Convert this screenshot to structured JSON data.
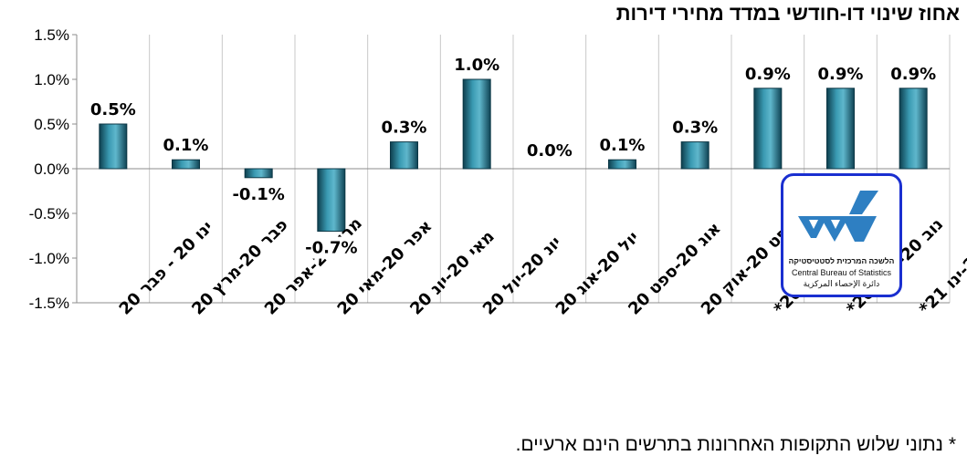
{
  "title": "אחוז שינוי דו-חודשי במדד מחירי דירות",
  "footnote": "* נתוני שלוש התקופות האחרונות בתרשים הינם ארעיים.",
  "logo": {
    "hebrew": "הלשכה המרכזית לסטטיסטיקה",
    "english": "Central Bureau of Statistics",
    "arabic": "دائرة الإحصاء المركزية",
    "border_color": "#1a2fd0",
    "icon_color": "#2e7fc2"
  },
  "chart_data": {
    "type": "bar",
    "categories": [
      "ינו 20 - פבר 20",
      "פבר 20-מרץ 20",
      "מרץ 20-אפר 20",
      "אפר 20-מאי 20",
      "מאי 20-יונ 20",
      "יונ 20-יול 20",
      "יול 20-אוג 20",
      "אוג 20-ספט 20",
      "ספט 20-אוק 20",
      "אוק 20-נוב 20*",
      "נוב 20-דצמ 20*",
      "דצמ 20-ינו 21*"
    ],
    "values": [
      0.5,
      0.1,
      -0.1,
      -0.7,
      0.3,
      1.0,
      0.0,
      0.1,
      0.3,
      0.9,
      0.9,
      0.9
    ],
    "data_labels": [
      "0.5%",
      "0.1%",
      "-0.1%",
      "-0.7%",
      "0.3%",
      "1.0%",
      "0.0%",
      "0.1%",
      "0.3%",
      "0.9%",
      "0.9%",
      "0.9%"
    ],
    "ylim": [
      -1.5,
      1.5
    ],
    "yticks": [
      1.5,
      1.0,
      0.5,
      0.0,
      -0.5,
      -1.0,
      -1.5
    ],
    "ytick_labels": [
      "1.5%",
      "1.0%",
      "0.5%",
      "0.0%",
      "-0.5%",
      "-1.0%",
      "-1.5%"
    ],
    "grid": "vertical",
    "bar_color": "#2e7f94"
  }
}
